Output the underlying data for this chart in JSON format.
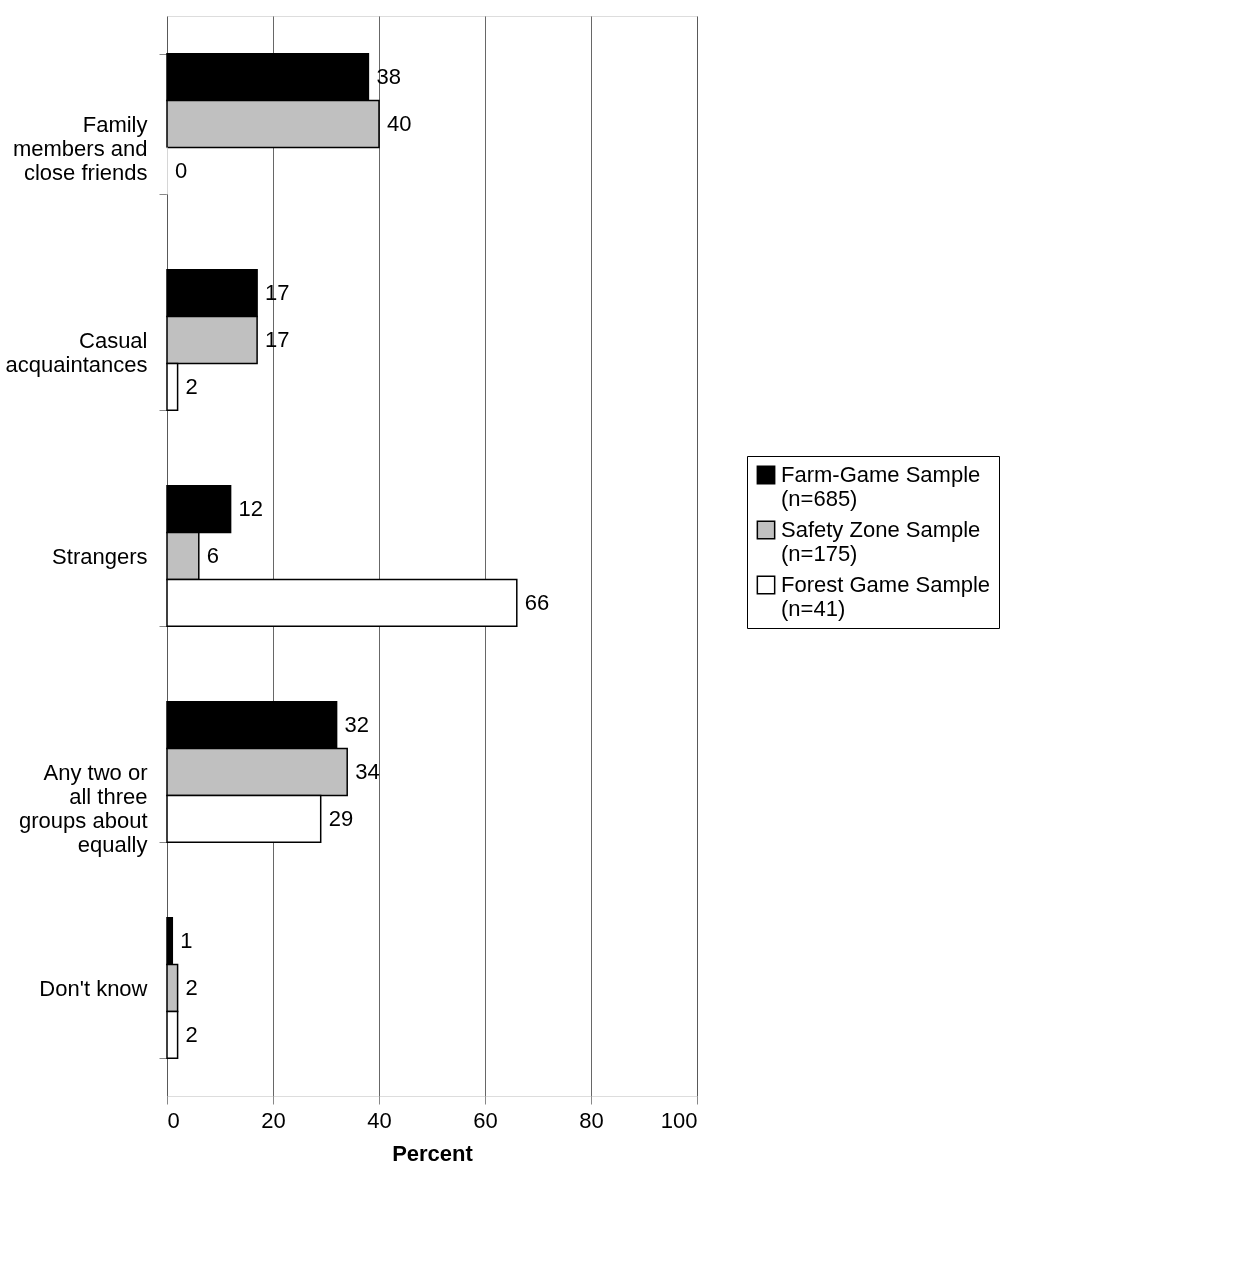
{
  "chart_data": {
    "type": "bar",
    "orientation": "horizontal",
    "xlabel": "Percent",
    "categories": [
      "Family members and close friends",
      "Casual acquaintances",
      "Strangers",
      "Any two or all three groups about equally",
      "Don't know"
    ],
    "series": [
      {
        "name": "Farm-Game Sample (n=685)",
        "color": "#000000",
        "values": [
          38,
          17,
          12,
          32,
          1
        ]
      },
      {
        "name": "Safety Zone Sample (n=175)",
        "color": "#c0c0c0",
        "values": [
          40,
          17,
          6,
          34,
          2
        ]
      },
      {
        "name": "Forest Game Sample (n=41)",
        "color": "#ffffff",
        "values": [
          0,
          2,
          66,
          29,
          2
        ]
      }
    ],
    "xlim": [
      0,
      100
    ],
    "xticks": [
      0,
      20,
      40,
      60,
      80,
      100
    ],
    "grid": "x",
    "legend": "right",
    "data_labels": true
  }
}
